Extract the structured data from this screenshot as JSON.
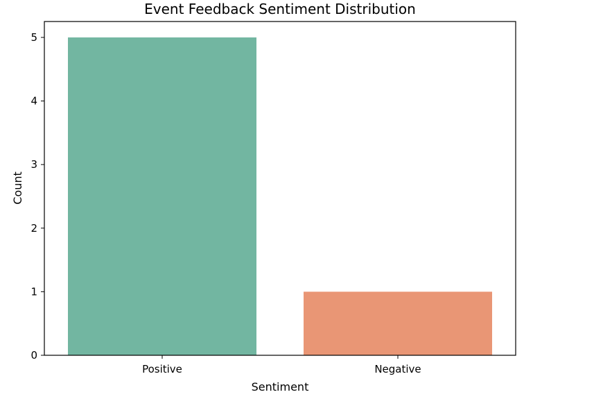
{
  "chart_data": {
    "type": "bar",
    "title": "Event Feedback Sentiment Distribution",
    "xlabel": "Sentiment",
    "ylabel": "Count",
    "categories": [
      "Positive",
      "Negative"
    ],
    "values": [
      5,
      1
    ],
    "colors": [
      "#72b6a1",
      "#e99675"
    ],
    "ylim": [
      0,
      5.25
    ],
    "yticks": [
      0,
      1,
      2,
      3,
      4,
      5
    ],
    "grid": false,
    "legend": "none"
  }
}
